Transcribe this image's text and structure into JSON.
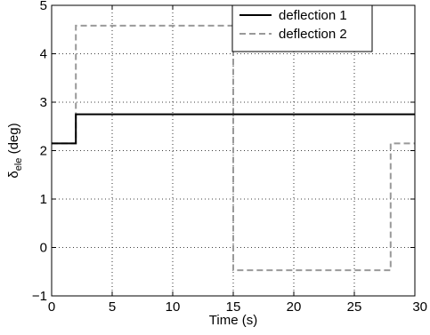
{
  "chart_data": {
    "type": "line",
    "title": "",
    "xlabel": "Time (s)",
    "ylabel_main": "δ",
    "ylabel_sub": "ele",
    "ylabel_unit": " (deg)",
    "xlim": [
      0,
      30
    ],
    "ylim": [
      -1,
      5
    ],
    "xticks": [
      "0",
      "5",
      "10",
      "15",
      "20",
      "25",
      "30"
    ],
    "yticks": [
      "−1",
      "0",
      "1",
      "2",
      "3",
      "4",
      "5"
    ],
    "xtick_values": [
      0,
      5,
      10,
      15,
      20,
      25,
      30
    ],
    "ytick_values": [
      -1,
      0,
      1,
      2,
      3,
      4,
      5
    ],
    "grid": true,
    "legend_position": "top-right",
    "series": [
      {
        "name": "deflection 1",
        "color": "#000000",
        "style": "solid",
        "x": [
          0,
          2,
          2,
          30
        ],
        "y": [
          2.15,
          2.15,
          2.75,
          2.75
        ]
      },
      {
        "name": "deflection 2",
        "color": "#999999",
        "style": "dashed",
        "x": [
          0,
          2,
          2,
          15,
          15,
          28,
          28,
          30
        ],
        "y": [
          2.15,
          2.15,
          4.58,
          4.58,
          -0.47,
          -0.47,
          2.15,
          2.15
        ]
      }
    ]
  }
}
